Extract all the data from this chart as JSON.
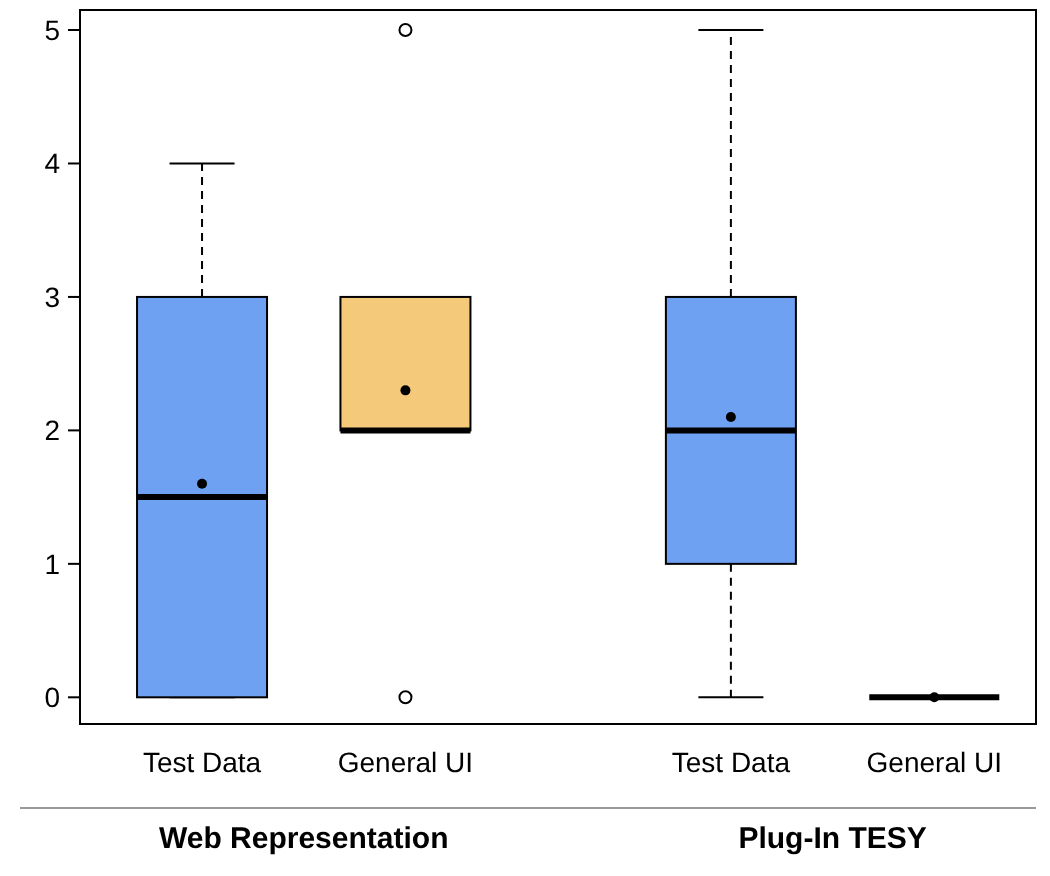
{
  "chart_data": {
    "type": "box",
    "categories": [
      "Test Data",
      "General UI",
      "Test Data",
      "General UI"
    ],
    "colors": [
      "#6fa1f2",
      "#f5c97a",
      "#6fa1f2",
      "#000000"
    ],
    "boxes": [
      {
        "low": 0,
        "q1": 0,
        "median": 1.5,
        "q3": 3,
        "high": 4,
        "mean": 1.6
      },
      {
        "low": 2,
        "q1": 2,
        "median": 2,
        "q3": 3,
        "high": 3,
        "mean": 2.3,
        "outliers": [
          0,
          5
        ]
      },
      {
        "low": 0,
        "q1": 1,
        "median": 2,
        "q3": 3,
        "high": 5,
        "mean": 2.1
      },
      {
        "low": 0,
        "q1": 0,
        "median": 0,
        "q3": 0,
        "high": 0,
        "mean": 0
      }
    ],
    "ylim": [
      -0.2,
      5.15
    ],
    "yticks": [
      0,
      1,
      2,
      3,
      4,
      5
    ],
    "annotations": [
      "Web Representation",
      "Plug-In TESY"
    ]
  }
}
